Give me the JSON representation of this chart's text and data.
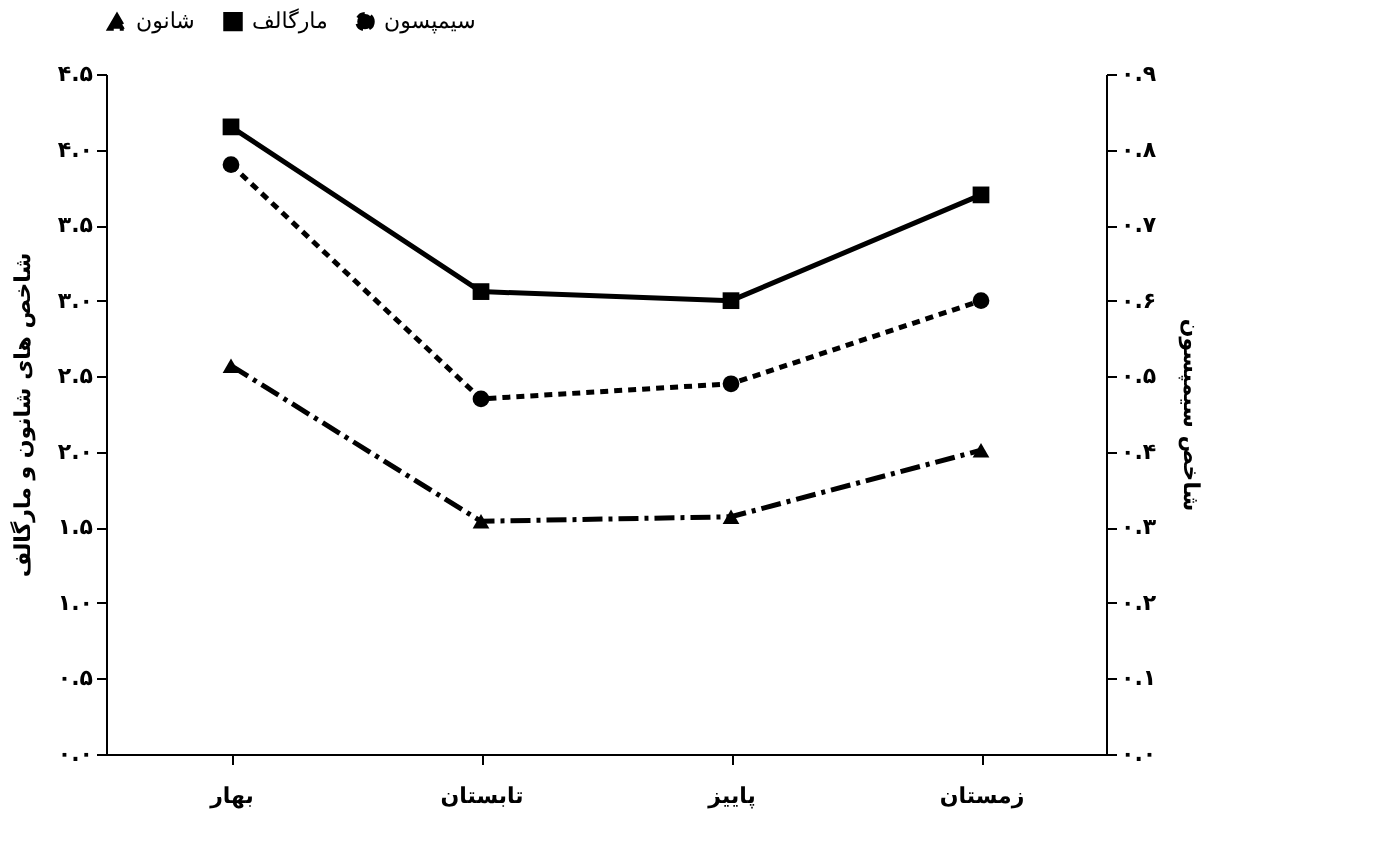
{
  "chart_data": {
    "type": "line",
    "categories": [
      "بهار",
      "تابستان",
      "پاییز",
      "زمستان"
    ],
    "ylabel": "شاخص های شانون و مارگالف",
    "y2label": "شاخص سیمپسون",
    "ylim": [
      0,
      4.5
    ],
    "yticks": [
      {
        "value": 0,
        "label": "۰.۰"
      },
      {
        "value": 0.5,
        "label": "۰.۵"
      },
      {
        "value": 1,
        "label": "۱.۰"
      },
      {
        "value": 1.5,
        "label": "۱.۵"
      },
      {
        "value": 2,
        "label": "۲.۰"
      },
      {
        "value": 2.5,
        "label": "۲.۵"
      },
      {
        "value": 3,
        "label": "۳.۰"
      },
      {
        "value": 3.5,
        "label": "۳.۵"
      },
      {
        "value": 4,
        "label": "۴.۰"
      },
      {
        "value": 4.5,
        "label": "۴.۵"
      }
    ],
    "y2lim": [
      0,
      0.9
    ],
    "y2ticks": [
      {
        "value": 0,
        "label": "۰.۰"
      },
      {
        "value": 0.1,
        "label": "۰.۱"
      },
      {
        "value": 0.2,
        "label": "۰.۲"
      },
      {
        "value": 0.3,
        "label": "۰.۳"
      },
      {
        "value": 0.4,
        "label": "۰.۴"
      },
      {
        "value": 0.5,
        "label": "۰.۵"
      },
      {
        "value": 0.6,
        "label": "۰.۶"
      },
      {
        "value": 0.7,
        "label": "۰.۷"
      },
      {
        "value": 0.8,
        "label": "۰.۸"
      },
      {
        "value": 0.9,
        "label": "۰.۹"
      }
    ],
    "legend": "top",
    "grid": false,
    "series": [
      {
        "name": "شانون",
        "color": "#000000",
        "marker": "triangle",
        "line_style": "dashed",
        "values": [
          2.57,
          1.54,
          1.57,
          2.01
        ]
      },
      {
        "name": "مارگالف",
        "color": "#000000",
        "marker": "square",
        "line_style": "solid",
        "values": [
          4.15,
          3.06,
          3.0,
          3.7
        ]
      },
      {
        "name": "سیمپسون",
        "color": "#000000",
        "marker": "circle",
        "line_style": "dotted",
        "axis": "y2",
        "values": [
          0.78,
          0.47,
          0.49,
          0.6
        ]
      }
    ]
  }
}
